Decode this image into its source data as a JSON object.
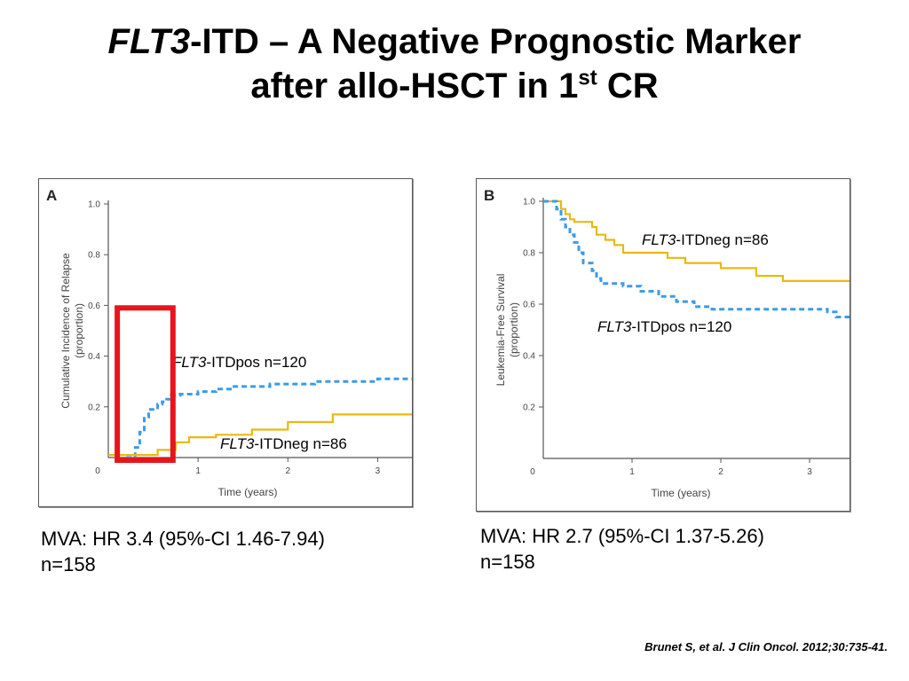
{
  "title": {
    "gene": "FLT3",
    "line1_rest": "-ITD – A Negative Prognostic Marker",
    "line2_pre": "after allo-HSCT in 1",
    "line2_sup": "st",
    "line2_post": " CR"
  },
  "footnotes": {
    "mva_a_line1": "MVA: HR 3.4 (95%-CI 1.46-7.94)",
    "mva_a_line2": "n=158",
    "mva_b_line1": "MVA: HR 2.7 (95%-CI 1.37-5.26)",
    "mva_b_line2": "n=158",
    "citation": "Brunet S, et al. J Clin Oncol. 2012;30:735-41."
  },
  "colors": {
    "itdpos": "#3d9be9",
    "itdneg": "#e8b90f",
    "highlight_box": "#e8141c",
    "axis": "#555555"
  },
  "chart_data": [
    {
      "panel_label": "A",
      "type": "line",
      "xlabel": "Time (years)",
      "ylabel": "Cumulative Incidence of Relapse (proportion)",
      "xlim": [
        0,
        3.5
      ],
      "ylim": [
        0,
        1.0
      ],
      "x_ticks": [
        "0",
        "1",
        "2",
        "3"
      ],
      "y_ticks": [
        "0",
        "0.2",
        "0.4",
        "0.6",
        "0.8",
        "1.0"
      ],
      "highlight": {
        "x_start": 0.1,
        "x_end": 0.72,
        "y_top": 0.59,
        "color": "red"
      },
      "series": [
        {
          "label_gene": "FLT3",
          "label_rest": "-ITDpos n=120",
          "style": "dashed",
          "color": "#3d9be9",
          "points": [
            [
              0.2,
              0
            ],
            [
              0.3,
              0.04
            ],
            [
              0.35,
              0.1
            ],
            [
              0.4,
              0.16
            ],
            [
              0.45,
              0.19
            ],
            [
              0.55,
              0.21
            ],
            [
              0.6,
              0.22
            ],
            [
              0.65,
              0.23
            ],
            [
              0.7,
              0.245
            ],
            [
              0.8,
              0.25
            ],
            [
              1.0,
              0.26
            ],
            [
              1.2,
              0.27
            ],
            [
              1.4,
              0.28
            ],
            [
              1.8,
              0.29
            ],
            [
              2.3,
              0.3
            ],
            [
              3.0,
              0.31
            ],
            [
              3.5,
              0.32
            ]
          ]
        },
        {
          "label_gene": "FLT3",
          "label_rest": "-ITDneg n=86",
          "style": "solid",
          "color": "#e8b90f",
          "points": [
            [
              0,
              0.01
            ],
            [
              0.3,
              0.01
            ],
            [
              0.55,
              0.03
            ],
            [
              0.75,
              0.06
            ],
            [
              0.9,
              0.08
            ],
            [
              1.2,
              0.09
            ],
            [
              1.6,
              0.11
            ],
            [
              2.0,
              0.14
            ],
            [
              2.5,
              0.17
            ],
            [
              3.5,
              0.19
            ]
          ]
        }
      ]
    },
    {
      "panel_label": "B",
      "type": "line",
      "xlabel": "Time (years)",
      "ylabel": "Leukemia-Free Survival (proportion)",
      "xlim": [
        0,
        3.5
      ],
      "ylim": [
        0,
        1.0
      ],
      "x_ticks": [
        "0",
        "1",
        "2",
        "3"
      ],
      "y_ticks": [
        "0",
        "0.2",
        "0.4",
        "0.6",
        "0.8",
        "1.0"
      ],
      "series": [
        {
          "label_gene": "FLT3",
          "label_rest": "-ITDneg n=86",
          "style": "solid",
          "color": "#e8b90f",
          "points": [
            [
              0,
              1.0
            ],
            [
              0.15,
              1.0
            ],
            [
              0.2,
              0.97
            ],
            [
              0.25,
              0.95
            ],
            [
              0.3,
              0.93
            ],
            [
              0.35,
              0.92
            ],
            [
              0.55,
              0.9
            ],
            [
              0.6,
              0.87
            ],
            [
              0.7,
              0.85
            ],
            [
              0.8,
              0.83
            ],
            [
              0.9,
              0.8
            ],
            [
              1.4,
              0.78
            ],
            [
              1.6,
              0.76
            ],
            [
              2.0,
              0.74
            ],
            [
              2.4,
              0.71
            ],
            [
              2.7,
              0.69
            ],
            [
              3.5,
              0.69
            ]
          ]
        },
        {
          "label_gene": "FLT3",
          "label_rest": "-ITDpos n=120",
          "style": "dashed",
          "color": "#3d9be9",
          "points": [
            [
              0,
              1.0
            ],
            [
              0.1,
              1.0
            ],
            [
              0.15,
              0.97
            ],
            [
              0.2,
              0.93
            ],
            [
              0.25,
              0.9
            ],
            [
              0.3,
              0.87
            ],
            [
              0.35,
              0.84
            ],
            [
              0.4,
              0.8
            ],
            [
              0.45,
              0.76
            ],
            [
              0.55,
              0.73
            ],
            [
              0.6,
              0.7
            ],
            [
              0.65,
              0.68
            ],
            [
              0.9,
              0.67
            ],
            [
              1.1,
              0.65
            ],
            [
              1.3,
              0.63
            ],
            [
              1.5,
              0.61
            ],
            [
              1.7,
              0.59
            ],
            [
              1.9,
              0.58
            ],
            [
              2.3,
              0.58
            ],
            [
              3.2,
              0.57
            ],
            [
              3.3,
              0.55
            ],
            [
              3.5,
              0.54
            ]
          ]
        }
      ]
    }
  ]
}
